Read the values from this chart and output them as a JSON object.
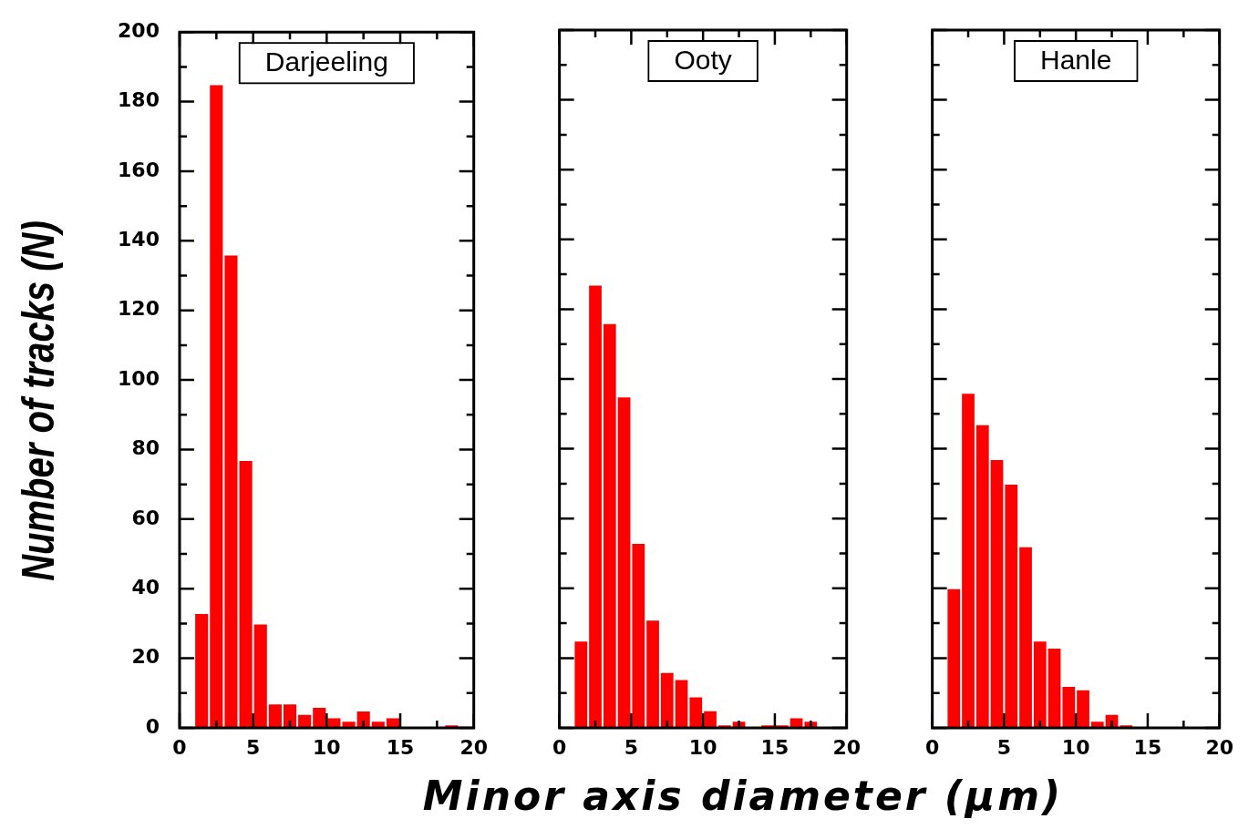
{
  "chart_data": [
    {
      "type": "histogram",
      "title": "Darjeeling",
      "ylabel": "Number of tracks (N)",
      "color": "#ff0000",
      "bins": [
        1,
        2,
        3,
        4,
        5,
        6,
        7,
        8,
        9,
        10,
        11,
        12,
        13,
        14,
        15,
        16,
        17,
        18,
        19
      ],
      "values": [
        33,
        185,
        136,
        77,
        30,
        7,
        7,
        4,
        6,
        3,
        2,
        5,
        2,
        3,
        0,
        0,
        0,
        1
      ],
      "xlim": [
        0,
        20
      ],
      "xticks": [
        0,
        5,
        10,
        15,
        20
      ],
      "ylim": [
        0,
        200
      ],
      "yticks": [
        0,
        20,
        40,
        60,
        80,
        100,
        120,
        140,
        160,
        180,
        200
      ],
      "grid": false,
      "legend": false
    },
    {
      "type": "histogram",
      "title": "Ooty",
      "xlabel": "Minor axis diameter (μm)",
      "color": "#ff0000",
      "bins": [
        1,
        2,
        3,
        4,
        5,
        6,
        7,
        8,
        9,
        10,
        11,
        12,
        13,
        14,
        15,
        16,
        17,
        18
      ],
      "values": [
        25,
        127,
        116,
        95,
        53,
        31,
        16,
        14,
        9,
        5,
        1,
        2,
        0,
        1,
        1,
        3,
        2
      ],
      "xlim": [
        0,
        20
      ],
      "xticks": [
        0,
        5,
        10,
        15,
        20
      ],
      "ylim": [
        0,
        200
      ],
      "yticks": [
        0,
        20,
        40,
        60,
        80,
        100,
        120,
        140,
        160,
        180,
        200
      ],
      "grid": false,
      "legend": false,
      "tick_labels": "x"
    },
    {
      "type": "histogram",
      "title": "Hanle",
      "color": "#ff0000",
      "bins": [
        1,
        2,
        3,
        4,
        5,
        6,
        7,
        8,
        9,
        10,
        11,
        12,
        13,
        14
      ],
      "values": [
        40,
        96,
        87,
        77,
        70,
        52,
        25,
        23,
        12,
        11,
        2,
        4,
        1
      ],
      "xlim": [
        0,
        20
      ],
      "xticks": [
        0,
        5,
        10,
        15,
        20
      ],
      "ylim": [
        0,
        200
      ],
      "yticks": [
        0,
        20,
        40,
        60,
        80,
        100,
        120,
        140,
        160,
        180,
        200
      ],
      "grid": false,
      "legend": false,
      "tick_labels": "x"
    }
  ]
}
